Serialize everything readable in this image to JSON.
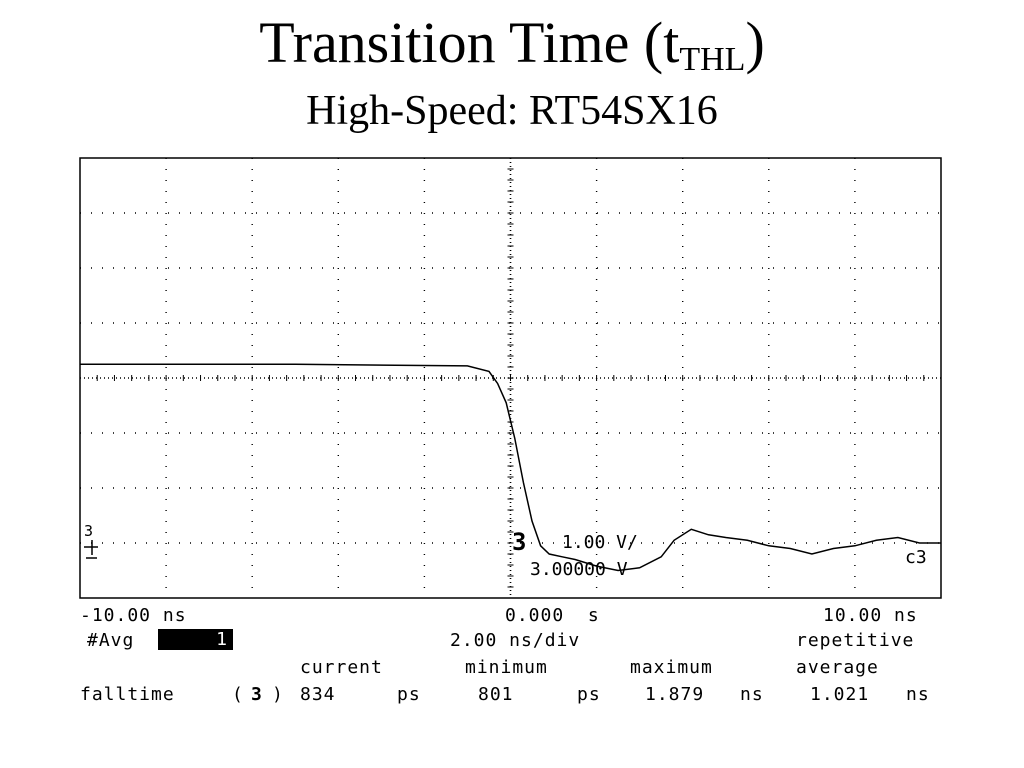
{
  "header": {
    "title_main": "Transition  Time (t",
    "title_sub": "THL",
    "title_close": ")",
    "subtitle": "High-Speed: RT54SX16"
  },
  "chart_data": {
    "type": "line",
    "title": "Transition  Time (tTHL)",
    "subtitle": "High-Speed: RT54SX16",
    "grid": true,
    "x_unit": "ns",
    "x_range": [
      -10,
      10
    ],
    "x_divisions": 10,
    "y_divisions": 8,
    "y_range_div": [
      -4,
      4
    ],
    "series": [
      {
        "name": "c3",
        "x": [
          -10,
          -5,
          -1,
          -0.5,
          -0.3,
          -0.1,
          0.1,
          0.3,
          0.5,
          0.7,
          0.9,
          1.2,
          1.5,
          2,
          2.5,
          3,
          3.5,
          3.8,
          4.2,
          4.6,
          5,
          5.5,
          6,
          6.5,
          7,
          7.5,
          8,
          8.5,
          9,
          9.5,
          10
        ],
        "y": [
          0.25,
          0.25,
          0.22,
          0.12,
          -0.1,
          -0.45,
          -1.1,
          -1.9,
          -2.6,
          -3.05,
          -3.2,
          -3.25,
          -3.3,
          -3.42,
          -3.5,
          -3.45,
          -3.25,
          -2.95,
          -2.75,
          -2.85,
          -2.9,
          -2.95,
          -3.05,
          -3.1,
          -3.2,
          -3.1,
          -3.05,
          -2.95,
          -2.9,
          -3.0,
          -3.0
        ]
      }
    ],
    "channel_marker": "3",
    "channel_label": "3",
    "scale_text": "1.00  V/",
    "offset_text": "3.00000  V",
    "trace_label": "c3",
    "left_time": "-10.00 ns",
    "center_time": "0.000  s",
    "right_time": "10.00 ns",
    "timebase": "2.00 ns/div",
    "avg_label": "#Avg",
    "avg_value": "1",
    "mode": "repetitive",
    "measurement": {
      "headers": [
        "current",
        "minimum",
        "maximum",
        "average"
      ],
      "name": "falltime",
      "channel_open": "(",
      "channel": "3",
      "channel_close": ")",
      "current": "834",
      "current_unit": "ps",
      "minimum": "801",
      "minimum_unit": "ps",
      "maximum": "1.879",
      "maximum_unit": "ns",
      "average": "1.021",
      "average_unit": "ns"
    }
  }
}
